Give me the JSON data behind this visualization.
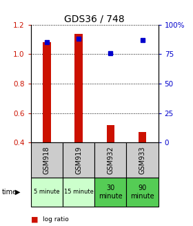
{
  "title": "GDS36 / 748",
  "samples": [
    "GSM918",
    "GSM919",
    "GSM932",
    "GSM933"
  ],
  "times": [
    "5 minute",
    "15 minute",
    "30\nminute",
    "90\nminute"
  ],
  "time_colors_light": [
    "#ccffcc",
    "#ccffcc"
  ],
  "time_colors_dark": [
    "#55cc55",
    "#55cc55"
  ],
  "log_ratios": [
    1.08,
    1.14,
    0.52,
    0.47
  ],
  "percentile_ranks": [
    85,
    88,
    76,
    87
  ],
  "log_ratio_color": "#cc1100",
  "percentile_color": "#0000cc",
  "ylim_left": [
    0.4,
    1.2
  ],
  "ylim_right": [
    0,
    100
  ],
  "sample_bg_color": "#cccccc",
  "title_fontsize": 10,
  "left_tick_color": "#cc1100",
  "right_tick_color": "#0000cc",
  "bar_width": 0.25
}
